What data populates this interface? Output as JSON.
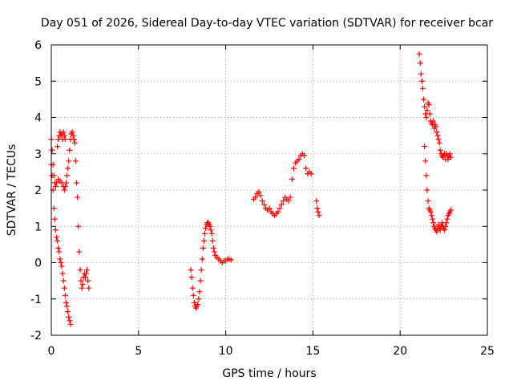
{
  "chart_data": {
    "type": "scatter",
    "title": "Day 051 of 2026, Sidereal Day-to-day VTEC variation (SDTVAR) for receiver bcar",
    "xlabel": "GPS time / hours",
    "ylabel": "SDTVAR / TECUs",
    "xlim": [
      0,
      25
    ],
    "ylim": [
      -2,
      6
    ],
    "xticks": [
      0,
      5,
      10,
      15,
      20,
      25
    ],
    "yticks": [
      -2,
      -1,
      0,
      1,
      2,
      3,
      4,
      5,
      6
    ],
    "grid": true,
    "marker": "plus",
    "color": "#ff0000",
    "series": [
      {
        "name": "bcar",
        "points": [
          [
            0.0,
            3.4
          ],
          [
            0.05,
            3.1
          ],
          [
            0.1,
            2.7
          ],
          [
            0.15,
            2.4
          ],
          [
            0.2,
            2.2
          ],
          [
            0.25,
            2.1
          ],
          [
            0.3,
            2.2
          ],
          [
            0.35,
            3.2
          ],
          [
            0.4,
            3.4
          ],
          [
            0.45,
            3.5
          ],
          [
            0.5,
            3.6
          ],
          [
            0.55,
            3.5
          ],
          [
            0.6,
            3.55
          ],
          [
            0.65,
            3.4
          ],
          [
            0.7,
            3.6
          ],
          [
            0.75,
            3.5
          ],
          [
            0.8,
            3.4
          ],
          [
            0.0,
            2.7
          ],
          [
            0.05,
            2.4
          ],
          [
            0.1,
            2.0
          ],
          [
            0.15,
            1.5
          ],
          [
            0.2,
            1.2
          ],
          [
            0.25,
            0.9
          ],
          [
            0.3,
            0.7
          ],
          [
            0.35,
            0.6
          ],
          [
            0.4,
            0.4
          ],
          [
            0.45,
            0.3
          ],
          [
            0.5,
            0.1
          ],
          [
            0.55,
            0.0
          ],
          [
            0.6,
            -0.1
          ],
          [
            0.65,
            -0.3
          ],
          [
            0.7,
            -0.5
          ],
          [
            0.75,
            -0.7
          ],
          [
            0.8,
            -0.9
          ],
          [
            0.85,
            -1.1
          ],
          [
            0.9,
            -1.2
          ],
          [
            0.95,
            -1.35
          ],
          [
            1.0,
            -1.5
          ],
          [
            1.05,
            -1.6
          ],
          [
            1.1,
            -1.7
          ],
          [
            0.4,
            2.3
          ],
          [
            0.5,
            2.25
          ],
          [
            0.6,
            2.2
          ],
          [
            0.7,
            2.1
          ],
          [
            0.75,
            2.0
          ],
          [
            0.8,
            2.1
          ],
          [
            0.85,
            2.2
          ],
          [
            0.9,
            2.4
          ],
          [
            0.95,
            2.6
          ],
          [
            1.0,
            2.8
          ],
          [
            1.05,
            3.1
          ],
          [
            1.1,
            3.4
          ],
          [
            1.15,
            3.55
          ],
          [
            1.2,
            3.6
          ],
          [
            1.25,
            3.5
          ],
          [
            1.3,
            3.4
          ],
          [
            1.35,
            3.3
          ],
          [
            1.4,
            2.8
          ],
          [
            1.45,
            2.2
          ],
          [
            1.5,
            1.8
          ],
          [
            1.55,
            1.0
          ],
          [
            1.6,
            0.3
          ],
          [
            1.65,
            -0.2
          ],
          [
            1.7,
            -0.5
          ],
          [
            1.75,
            -0.7
          ],
          [
            1.8,
            -0.6
          ],
          [
            1.85,
            -0.4
          ],
          [
            1.9,
            -0.3
          ],
          [
            1.95,
            -0.4
          ],
          [
            2.0,
            -0.3
          ],
          [
            2.05,
            -0.2
          ],
          [
            2.1,
            -0.5
          ],
          [
            2.15,
            -0.7
          ],
          [
            8.0,
            -0.2
          ],
          [
            8.05,
            -0.4
          ],
          [
            8.1,
            -0.7
          ],
          [
            8.15,
            -0.9
          ],
          [
            8.2,
            -1.1
          ],
          [
            8.25,
            -1.2
          ],
          [
            8.3,
            -1.25
          ],
          [
            8.35,
            -1.2
          ],
          [
            8.4,
            -1.15
          ],
          [
            8.45,
            -1.0
          ],
          [
            8.5,
            -0.8
          ],
          [
            8.55,
            -0.5
          ],
          [
            8.6,
            -0.2
          ],
          [
            8.65,
            0.1
          ],
          [
            8.7,
            0.4
          ],
          [
            8.75,
            0.6
          ],
          [
            8.8,
            0.8
          ],
          [
            8.85,
            0.95
          ],
          [
            8.9,
            1.05
          ],
          [
            8.95,
            1.1
          ],
          [
            9.0,
            1.1
          ],
          [
            9.05,
            1.05
          ],
          [
            9.1,
            1.0
          ],
          [
            9.15,
            0.9
          ],
          [
            9.2,
            0.8
          ],
          [
            9.25,
            0.6
          ],
          [
            9.3,
            0.4
          ],
          [
            9.35,
            0.3
          ],
          [
            9.4,
            0.2
          ],
          [
            9.5,
            0.15
          ],
          [
            9.6,
            0.1
          ],
          [
            9.7,
            0.05
          ],
          [
            9.8,
            0.0
          ],
          [
            9.9,
            0.05
          ],
          [
            10.0,
            0.05
          ],
          [
            10.1,
            0.1
          ],
          [
            10.2,
            0.1
          ],
          [
            10.3,
            0.08
          ],
          [
            11.6,
            1.75
          ],
          [
            11.7,
            1.8
          ],
          [
            11.8,
            1.9
          ],
          [
            11.9,
            1.95
          ],
          [
            12.0,
            1.85
          ],
          [
            12.1,
            1.7
          ],
          [
            12.2,
            1.6
          ],
          [
            12.3,
            1.5
          ],
          [
            12.4,
            1.45
          ],
          [
            12.5,
            1.5
          ],
          [
            12.6,
            1.4
          ],
          [
            12.7,
            1.35
          ],
          [
            12.8,
            1.3
          ],
          [
            12.9,
            1.35
          ],
          [
            13.0,
            1.4
          ],
          [
            13.1,
            1.5
          ],
          [
            13.2,
            1.6
          ],
          [
            13.3,
            1.7
          ],
          [
            13.4,
            1.8
          ],
          [
            13.5,
            1.75
          ],
          [
            13.6,
            1.7
          ],
          [
            13.7,
            1.8
          ],
          [
            13.8,
            2.3
          ],
          [
            13.9,
            2.6
          ],
          [
            14.0,
            2.75
          ],
          [
            14.1,
            2.8
          ],
          [
            14.2,
            2.85
          ],
          [
            14.3,
            2.95
          ],
          [
            14.4,
            3.0
          ],
          [
            14.5,
            2.95
          ],
          [
            14.6,
            2.6
          ],
          [
            14.7,
            2.45
          ],
          [
            14.8,
            2.5
          ],
          [
            14.9,
            2.45
          ],
          [
            15.2,
            1.7
          ],
          [
            15.25,
            1.5
          ],
          [
            15.3,
            1.4
          ],
          [
            15.35,
            1.3
          ],
          [
            21.1,
            5.75
          ],
          [
            21.15,
            5.5
          ],
          [
            21.2,
            5.2
          ],
          [
            21.25,
            5.0
          ],
          [
            21.3,
            4.8
          ],
          [
            21.35,
            4.5
          ],
          [
            21.4,
            4.3
          ],
          [
            21.45,
            4.1
          ],
          [
            21.5,
            4.0
          ],
          [
            21.55,
            4.2
          ],
          [
            21.6,
            4.4
          ],
          [
            21.65,
            4.35
          ],
          [
            21.7,
            4.1
          ],
          [
            21.75,
            3.9
          ],
          [
            21.8,
            3.85
          ],
          [
            21.85,
            3.8
          ],
          [
            21.9,
            3.9
          ],
          [
            21.95,
            3.7
          ],
          [
            22.0,
            3.8
          ],
          [
            22.05,
            3.75
          ],
          [
            22.1,
            3.6
          ],
          [
            22.15,
            3.5
          ],
          [
            22.2,
            3.4
          ],
          [
            22.25,
            3.3
          ],
          [
            22.3,
            3.1
          ],
          [
            22.35,
            3.0
          ],
          [
            22.4,
            2.95
          ],
          [
            22.45,
            2.9
          ],
          [
            22.5,
            2.95
          ],
          [
            22.55,
            3.0
          ],
          [
            22.6,
            2.85
          ],
          [
            22.65,
            3.0
          ],
          [
            22.7,
            2.95
          ],
          [
            22.75,
            2.85
          ],
          [
            22.8,
            2.95
          ],
          [
            22.85,
            3.0
          ],
          [
            22.9,
            2.9
          ],
          [
            21.4,
            3.2
          ],
          [
            21.45,
            2.8
          ],
          [
            21.5,
            2.4
          ],
          [
            21.55,
            2.0
          ],
          [
            21.6,
            1.7
          ],
          [
            21.65,
            1.5
          ],
          [
            21.7,
            1.45
          ],
          [
            21.75,
            1.4
          ],
          [
            21.8,
            1.3
          ],
          [
            21.85,
            1.2
          ],
          [
            21.9,
            1.1
          ],
          [
            21.95,
            1.0
          ],
          [
            22.0,
            0.95
          ],
          [
            22.05,
            0.9
          ],
          [
            22.1,
            0.85
          ],
          [
            22.15,
            0.95
          ],
          [
            22.2,
            1.05
          ],
          [
            22.25,
            0.95
          ],
          [
            22.3,
            0.9
          ],
          [
            22.35,
            1.0
          ],
          [
            22.4,
            1.1
          ],
          [
            22.45,
            1.0
          ],
          [
            22.5,
            0.95
          ],
          [
            22.55,
            0.9
          ],
          [
            22.6,
            1.0
          ],
          [
            22.65,
            1.1
          ],
          [
            22.7,
            1.2
          ],
          [
            22.75,
            1.3
          ],
          [
            22.8,
            1.35
          ],
          [
            22.85,
            1.4
          ],
          [
            22.9,
            1.45
          ]
        ]
      }
    ]
  }
}
